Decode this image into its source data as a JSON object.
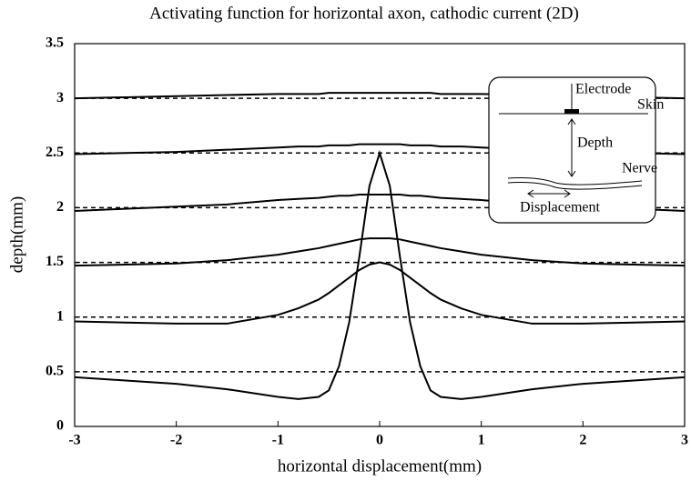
{
  "chart_data": {
    "type": "line",
    "title": "Activating function for horizontal axon, cathodic current (2D)",
    "x_label": "horizontal displacement(mm)",
    "y_label": "depth(mm)",
    "x": [
      -3,
      -2.5,
      -2,
      -1.5,
      -1,
      -0.8,
      -0.6,
      -0.5,
      -0.4,
      -0.3,
      -0.2,
      -0.1,
      0,
      0.1,
      0.2,
      0.3,
      0.4,
      0.5,
      0.6,
      0.8,
      1,
      1.5,
      2,
      2.5,
      3
    ],
    "series": [
      {
        "color": "#000000",
        "values": [
          0.45,
          0.42,
          0.39,
          0.34,
          0.27,
          0.25,
          0.27,
          0.33,
          0.55,
          0.95,
          1.55,
          2.2,
          2.5,
          2.2,
          1.55,
          0.95,
          0.55,
          0.33,
          0.27,
          0.25,
          0.27,
          0.34,
          0.39,
          0.42,
          0.45
        ]
      },
      {
        "color": "#000000",
        "values": [
          0.96,
          0.95,
          0.94,
          0.94,
          1.02,
          1.08,
          1.16,
          1.22,
          1.29,
          1.36,
          1.43,
          1.48,
          1.5,
          1.48,
          1.43,
          1.36,
          1.29,
          1.22,
          1.16,
          1.08,
          1.02,
          0.94,
          0.94,
          0.95,
          0.96
        ]
      },
      {
        "color": "#000000",
        "values": [
          1.47,
          1.48,
          1.49,
          1.52,
          1.57,
          1.6,
          1.63,
          1.65,
          1.67,
          1.69,
          1.71,
          1.72,
          1.72,
          1.72,
          1.71,
          1.69,
          1.67,
          1.65,
          1.63,
          1.6,
          1.57,
          1.52,
          1.49,
          1.48,
          1.47
        ]
      },
      {
        "color": "#000000",
        "values": [
          1.97,
          1.99,
          2.01,
          2.03,
          2.07,
          2.08,
          2.09,
          2.1,
          2.11,
          2.11,
          2.12,
          2.12,
          2.12,
          2.12,
          2.12,
          2.11,
          2.11,
          2.1,
          2.09,
          2.08,
          2.07,
          2.03,
          2.01,
          1.99,
          1.97
        ]
      },
      {
        "color": "#000000",
        "values": [
          2.49,
          2.5,
          2.51,
          2.53,
          2.55,
          2.56,
          2.56,
          2.57,
          2.57,
          2.57,
          2.58,
          2.58,
          2.58,
          2.58,
          2.58,
          2.57,
          2.57,
          2.57,
          2.56,
          2.56,
          2.55,
          2.53,
          2.51,
          2.5,
          2.49
        ]
      },
      {
        "color": "#000000",
        "values": [
          3.0,
          3.01,
          3.02,
          3.03,
          3.04,
          3.04,
          3.04,
          3.05,
          3.05,
          3.05,
          3.05,
          3.05,
          3.05,
          3.05,
          3.05,
          3.05,
          3.05,
          3.05,
          3.04,
          3.04,
          3.04,
          3.03,
          3.02,
          3.01,
          3.0
        ]
      }
    ],
    "reference_lines": [
      0.5,
      1,
      1.5,
      2,
      2.5,
      3
    ],
    "xlim": [
      -3,
      3
    ],
    "xticks": [
      -3,
      -2,
      -1,
      0,
      1,
      2,
      3
    ],
    "ylim": [
      0,
      3.5
    ],
    "yticks": [
      0,
      0.5,
      1,
      1.5,
      2,
      2.5,
      3,
      3.5
    ],
    "inset": {
      "labels": [
        "Electrode",
        "Skin",
        "Depth",
        "Nerve",
        "Displacement"
      ]
    }
  }
}
